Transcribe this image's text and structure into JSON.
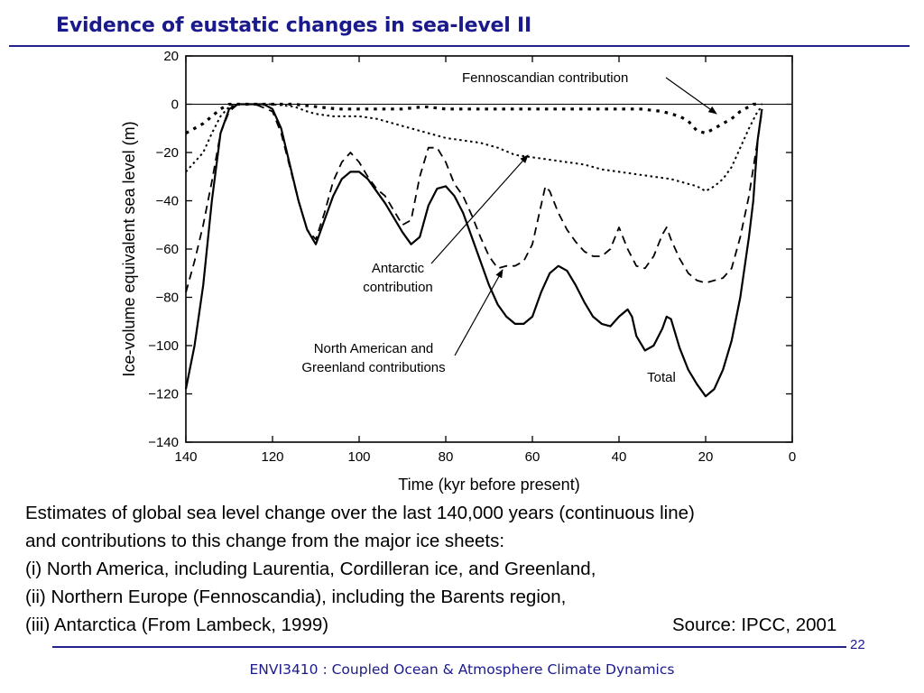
{
  "slide": {
    "title": "Evidence of eustatic changes in sea-level II",
    "caption_lines": [
      "Estimates of global sea level change over the last 140,000 years (continuous line)",
      "and contributions to this change from the major ice sheets:",
      "(i)   North America, including Laurentia, Cordilleran ice, and Greenland,",
      "(ii) Northern Europe (Fennoscandia), including the Barents region,",
      "(iii) Antarctica (From Lambeck, 1999)"
    ],
    "source": "Source: IPCC, 2001",
    "page_number": "22",
    "footer": "ENVI3410 : Coupled Ocean & Atmosphere Climate Dynamics",
    "accent_color": "#1a1a8c"
  },
  "chart_data": {
    "type": "line",
    "title": "",
    "xlabel": "Time (kyr before present)",
    "ylabel": "Ice-volume equivalent sea level (m)",
    "xlim": [
      140,
      0
    ],
    "ylim": [
      -140,
      20
    ],
    "x_ticks": [
      140,
      120,
      100,
      80,
      60,
      40,
      20,
      0
    ],
    "y_ticks": [
      20,
      0,
      -20,
      -40,
      -60,
      -80,
      -100,
      -120,
      -140
    ],
    "zero_line": true,
    "grid": false,
    "series": [
      {
        "name": "Total",
        "style": "solid",
        "points": [
          [
            140,
            -118
          ],
          [
            138,
            -100
          ],
          [
            136,
            -75
          ],
          [
            134,
            -40
          ],
          [
            132,
            -12
          ],
          [
            130,
            -2
          ],
          [
            128,
            0
          ],
          [
            125,
            0
          ],
          [
            122,
            0
          ],
          [
            120,
            -2
          ],
          [
            118,
            -10
          ],
          [
            116,
            -25
          ],
          [
            114,
            -40
          ],
          [
            112,
            -52
          ],
          [
            110,
            -58
          ],
          [
            108,
            -48
          ],
          [
            106,
            -38
          ],
          [
            104,
            -31
          ],
          [
            102,
            -28
          ],
          [
            100,
            -28
          ],
          [
            98,
            -31
          ],
          [
            96,
            -36
          ],
          [
            94,
            -41
          ],
          [
            92,
            -47
          ],
          [
            90,
            -53
          ],
          [
            88,
            -58
          ],
          [
            86,
            -55
          ],
          [
            84,
            -42
          ],
          [
            82,
            -35
          ],
          [
            80,
            -34
          ],
          [
            78,
            -38
          ],
          [
            76,
            -45
          ],
          [
            74,
            -55
          ],
          [
            72,
            -65
          ],
          [
            70,
            -75
          ],
          [
            68,
            -83
          ],
          [
            66,
            -88
          ],
          [
            64,
            -91
          ],
          [
            62,
            -91
          ],
          [
            60,
            -88
          ],
          [
            58,
            -78
          ],
          [
            56,
            -70
          ],
          [
            54,
            -67
          ],
          [
            52,
            -69
          ],
          [
            50,
            -75
          ],
          [
            48,
            -82
          ],
          [
            46,
            -88
          ],
          [
            44,
            -91
          ],
          [
            42,
            -92
          ],
          [
            40,
            -88
          ],
          [
            38,
            -85
          ],
          [
            37,
            -88
          ],
          [
            36,
            -96
          ],
          [
            34,
            -102
          ],
          [
            32,
            -100
          ],
          [
            30,
            -93
          ],
          [
            29,
            -88
          ],
          [
            28,
            -89
          ],
          [
            26,
            -101
          ],
          [
            24,
            -110
          ],
          [
            22,
            -116
          ],
          [
            20,
            -121
          ],
          [
            18,
            -118
          ],
          [
            16,
            -110
          ],
          [
            14,
            -98
          ],
          [
            12,
            -80
          ],
          [
            10,
            -55
          ],
          [
            9,
            -40
          ],
          [
            8,
            -15
          ],
          [
            7,
            -2
          ]
        ]
      },
      {
        "name": "Fennoscandian contribution",
        "style": "square-dotted",
        "points": [
          [
            140,
            -12
          ],
          [
            138,
            -10
          ],
          [
            136,
            -8
          ],
          [
            134,
            -5
          ],
          [
            132,
            -2
          ],
          [
            130,
            0
          ],
          [
            125,
            0
          ],
          [
            120,
            0
          ],
          [
            115,
            0
          ],
          [
            110,
            -1
          ],
          [
            105,
            -2
          ],
          [
            100,
            -2
          ],
          [
            95,
            -2
          ],
          [
            90,
            -2
          ],
          [
            85,
            -1
          ],
          [
            80,
            -2
          ],
          [
            75,
            -2
          ],
          [
            70,
            -2
          ],
          [
            65,
            -2
          ],
          [
            60,
            -2
          ],
          [
            55,
            -2
          ],
          [
            50,
            -2
          ],
          [
            45,
            -2
          ],
          [
            40,
            -2
          ],
          [
            35,
            -2
          ],
          [
            30,
            -3
          ],
          [
            28,
            -4
          ],
          [
            26,
            -5
          ],
          [
            24,
            -7
          ],
          [
            22,
            -11
          ],
          [
            20,
            -12
          ],
          [
            18,
            -10
          ],
          [
            16,
            -8
          ],
          [
            14,
            -6
          ],
          [
            12,
            -3
          ],
          [
            10,
            -1
          ],
          [
            9,
            0
          ],
          [
            8,
            0
          ],
          [
            7,
            0
          ]
        ]
      },
      {
        "name": "North American and Greenland contributions",
        "style": "dashed",
        "points": [
          [
            140,
            -78
          ],
          [
            138,
            -65
          ],
          [
            136,
            -50
          ],
          [
            134,
            -32
          ],
          [
            132,
            -12
          ],
          [
            130,
            -3
          ],
          [
            128,
            0
          ],
          [
            124,
            0
          ],
          [
            120,
            -3
          ],
          [
            118,
            -12
          ],
          [
            116,
            -26
          ],
          [
            114,
            -40
          ],
          [
            112,
            -52
          ],
          [
            110,
            -56
          ],
          [
            108,
            -45
          ],
          [
            106,
            -32
          ],
          [
            104,
            -24
          ],
          [
            102,
            -20
          ],
          [
            100,
            -24
          ],
          [
            98,
            -30
          ],
          [
            96,
            -35
          ],
          [
            94,
            -38
          ],
          [
            92,
            -44
          ],
          [
            90,
            -50
          ],
          [
            88,
            -48
          ],
          [
            86,
            -30
          ],
          [
            84,
            -18
          ],
          [
            82,
            -18
          ],
          [
            80,
            -24
          ],
          [
            78,
            -33
          ],
          [
            76,
            -38
          ],
          [
            74,
            -46
          ],
          [
            72,
            -55
          ],
          [
            70,
            -63
          ],
          [
            68,
            -68
          ],
          [
            66,
            -67
          ],
          [
            64,
            -67
          ],
          [
            62,
            -65
          ],
          [
            60,
            -58
          ],
          [
            58,
            -42
          ],
          [
            57,
            -34
          ],
          [
            56,
            -36
          ],
          [
            54,
            -45
          ],
          [
            52,
            -52
          ],
          [
            50,
            -57
          ],
          [
            48,
            -61
          ],
          [
            46,
            -63
          ],
          [
            44,
            -63
          ],
          [
            42,
            -60
          ],
          [
            40,
            -51
          ],
          [
            38,
            -60
          ],
          [
            36,
            -67
          ],
          [
            34,
            -68
          ],
          [
            32,
            -63
          ],
          [
            30,
            -54
          ],
          [
            29,
            -51
          ],
          [
            28,
            -56
          ],
          [
            26,
            -64
          ],
          [
            24,
            -70
          ],
          [
            22,
            -73
          ],
          [
            20,
            -74
          ],
          [
            18,
            -73
          ],
          [
            16,
            -72
          ],
          [
            14,
            -68
          ],
          [
            12,
            -55
          ],
          [
            10,
            -38
          ],
          [
            8,
            -15
          ],
          [
            7,
            -3
          ]
        ]
      },
      {
        "name": "Antarctic contribution",
        "style": "dotted",
        "points": [
          [
            140,
            -28
          ],
          [
            138,
            -24
          ],
          [
            136,
            -20
          ],
          [
            134,
            -12
          ],
          [
            132,
            -5
          ],
          [
            130,
            -1
          ],
          [
            128,
            0
          ],
          [
            125,
            0
          ],
          [
            120,
            0
          ],
          [
            115,
            -1
          ],
          [
            112,
            -3
          ],
          [
            110,
            -4
          ],
          [
            106,
            -5
          ],
          [
            100,
            -5
          ],
          [
            96,
            -6
          ],
          [
            92,
            -8
          ],
          [
            88,
            -10
          ],
          [
            84,
            -12
          ],
          [
            80,
            -14
          ],
          [
            76,
            -15
          ],
          [
            72,
            -16
          ],
          [
            68,
            -18
          ],
          [
            64,
            -21
          ],
          [
            60,
            -22
          ],
          [
            56,
            -23
          ],
          [
            52,
            -24
          ],
          [
            48,
            -25
          ],
          [
            44,
            -27
          ],
          [
            40,
            -28
          ],
          [
            36,
            -29
          ],
          [
            32,
            -30
          ],
          [
            28,
            -31
          ],
          [
            24,
            -33
          ],
          [
            22,
            -34
          ],
          [
            20,
            -36
          ],
          [
            18,
            -34
          ],
          [
            16,
            -31
          ],
          [
            14,
            -26
          ],
          [
            12,
            -18
          ],
          [
            10,
            -10
          ],
          [
            8,
            -3
          ],
          [
            7,
            -1
          ]
        ]
      }
    ],
    "annotations": [
      {
        "name": "Fennoscandian-label",
        "lines": [
          "Fennoscandian  contribution"
        ]
      },
      {
        "name": "Antarctic-label",
        "lines": [
          "Antarctic",
          "contribution"
        ]
      },
      {
        "name": "North-American-label",
        "lines": [
          "North  American and",
          "Greenland  contributions"
        ]
      },
      {
        "name": "Total-label",
        "lines": [
          "Total"
        ]
      }
    ]
  }
}
